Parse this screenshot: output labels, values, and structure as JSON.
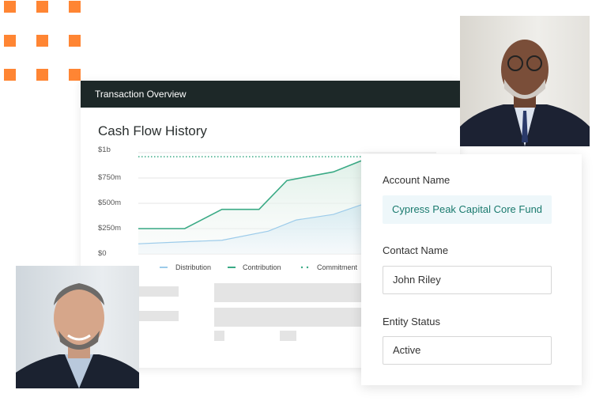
{
  "colors": {
    "accent_orange": "#ff8533",
    "header_dark": "#1d2828",
    "contribution": "#3aaa85",
    "distribution": "#9ccbea",
    "commitment": "#3aaa85",
    "account_text": "#1a7a6e"
  },
  "card": {
    "header": "Transaction Overview",
    "title": "Cash Flow History"
  },
  "chart_data": {
    "type": "area",
    "title": "Cash Flow History",
    "xlabel": "",
    "ylabel": "",
    "yticks": [
      "$0",
      "$250m",
      "$500m",
      "$750m",
      "$1b"
    ],
    "ylim": [
      0,
      1000
    ],
    "grid": true,
    "legend_placement": "bottom",
    "series": [
      {
        "name": "Distribution",
        "style": "area",
        "x": [
          0,
          2.5,
          4.5,
          7,
          8.5,
          10.5,
          12
        ],
        "values": [
          100,
          120,
          135,
          225,
          335,
          390,
          485
        ]
      },
      {
        "name": "Contribution",
        "style": "line-area",
        "x": [
          0,
          2.5,
          4.5,
          6.5,
          8,
          10.5,
          12
        ],
        "values": [
          250,
          250,
          440,
          440,
          725,
          810,
          920
        ]
      },
      {
        "name": "Commitment",
        "style": "dotted",
        "x": [
          0,
          12
        ],
        "values": [
          960,
          960
        ]
      }
    ]
  },
  "form": {
    "account_label": "Account Name",
    "account_value": "Cypress Peak Capital Core Fund",
    "contact_label": "Contact Name",
    "contact_value": "John Riley",
    "status_label": "Entity Status",
    "status_value": "Active"
  },
  "photos": {
    "top": "portrait-older-man-glasses",
    "bottom": "portrait-smiling-man-beard"
  }
}
